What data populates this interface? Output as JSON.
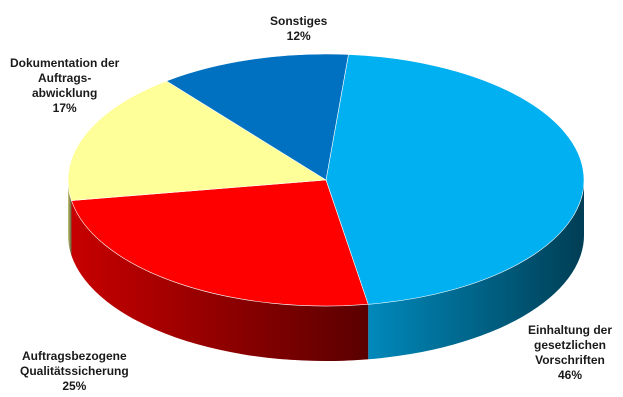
{
  "chart_data": {
    "type": "pie",
    "style": "3d",
    "slices": [
      {
        "label_lines": [
          "Einhaltung der",
          "gesetzlichen",
          "Vorschriften"
        ],
        "value_label": "46%",
        "value": 46,
        "color": "#00b0f0"
      },
      {
        "label_lines": [
          "Auftragsbezogene",
          "Qualitätssicherung"
        ],
        "value_label": "25%",
        "value": 25,
        "color": "#ff0000"
      },
      {
        "label_lines": [
          "Dokumentation der",
          "Auftrags-",
          "abwicklung"
        ],
        "value_label": "17%",
        "value": 17,
        "color": "#ffff99"
      },
      {
        "label_lines": [
          "Sonstiges"
        ],
        "value_label": "12%",
        "value": 12,
        "color": "#0070c0"
      }
    ]
  }
}
